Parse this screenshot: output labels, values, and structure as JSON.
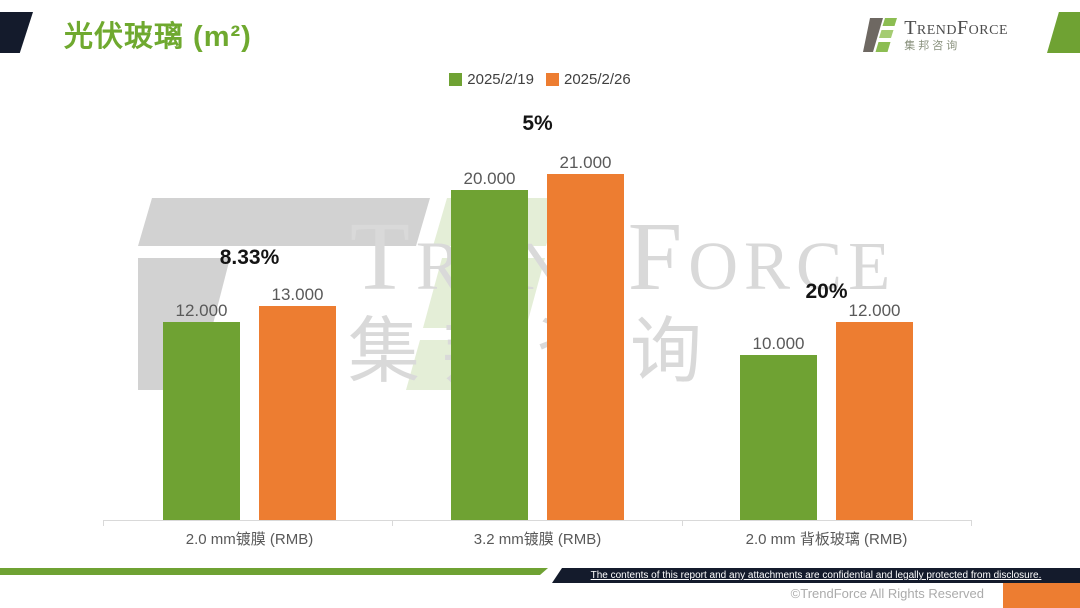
{
  "header": {
    "title": "光伏玻璃 (m²)",
    "logo": {
      "name": "TrendForce",
      "subtitle": "集邦咨询"
    }
  },
  "legend": [
    {
      "label": "2025/2/19",
      "color": "#6FA233"
    },
    {
      "label": "2025/2/26",
      "color": "#ED7D31"
    }
  ],
  "chart_data": {
    "type": "bar",
    "title": "光伏玻璃 (m²)",
    "categories": [
      "2.0 mm镀膜 (RMB)",
      "3.2 mm镀膜 (RMB)",
      "2.0 mm 背板玻璃 (RMB)"
    ],
    "series": [
      {
        "name": "2025/2/19",
        "color": "#6FA233",
        "values": [
          12,
          20,
          10
        ],
        "labels": [
          "12.000",
          "20.000",
          "10.000"
        ]
      },
      {
        "name": "2025/2/26",
        "color": "#ED7D31",
        "values": [
          13,
          21,
          12
        ],
        "labels": [
          "13.000",
          "21.000",
          "12.000"
        ]
      }
    ],
    "change_annotations": [
      "8.33%",
      "5%",
      "20%"
    ],
    "ylim": [
      0,
      24
    ],
    "grid": false,
    "legend_position": "top-center"
  },
  "watermark": {
    "text": "TrendForce",
    "subtext": "集邦咨询"
  },
  "footer": {
    "confidential_note": "The contents of this report and any attachments are confidential and legally protected from disclosure.",
    "copyright": "©TrendForce All Rights Reserved"
  },
  "colors": {
    "green": "#6FA233",
    "orange": "#ED7D31",
    "navy": "#141B2C",
    "title_green": "#6FA92F"
  }
}
